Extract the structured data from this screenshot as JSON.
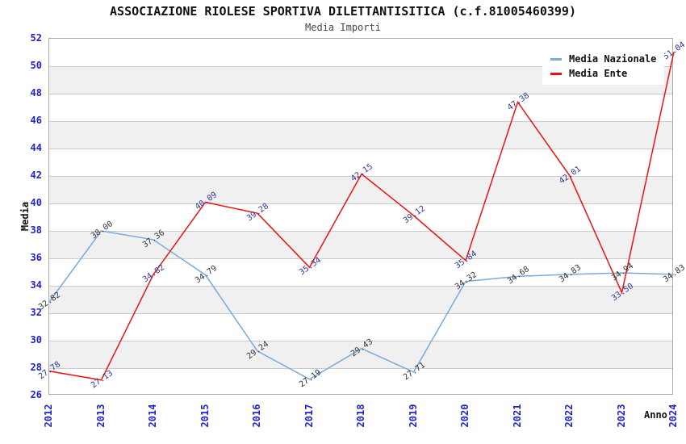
{
  "title": "ASSOCIAZIONE RIOLESE SPORTIVA DILETTANTISITICA (c.f.81005460399)",
  "subtitle": "Media Importi",
  "axes": {
    "x_label": "Anno",
    "y_label": "Media"
  },
  "chart_data": {
    "type": "line",
    "title": "ASSOCIAZIONE RIOLESE SPORTIVA DILETTANTISITICA (c.f.81005460399)",
    "subtitle": "Media Importi",
    "xlabel": "Anno",
    "ylabel": "Media",
    "categories": [
      "2012",
      "2013",
      "2014",
      "2015",
      "2016",
      "2017",
      "2018",
      "2019",
      "2020",
      "2021",
      "2022",
      "2023",
      "2024"
    ],
    "series": [
      {
        "name": "Media Nazionale",
        "color": "#77aadd",
        "label_color": "#333333",
        "values": [
          32.82,
          38.0,
          37.36,
          34.79,
          29.24,
          27.19,
          29.43,
          27.71,
          34.32,
          34.68,
          34.83,
          34.94,
          34.83
        ],
        "labels": [
          "32.82",
          "38.00",
          "37.36",
          "34.79",
          "29.24",
          "27.19",
          "29.43",
          "27.71",
          "34.32",
          "34.68",
          "34.83",
          "34.94",
          "34.83"
        ]
      },
      {
        "name": "Media Ente",
        "color": "#ee1111",
        "label_color": "#333399",
        "values": [
          27.78,
          27.13,
          34.82,
          40.09,
          39.28,
          35.34,
          42.15,
          39.12,
          35.84,
          47.38,
          42.01,
          33.5,
          51.04
        ],
        "labels": [
          "27.78",
          "27.13",
          "34.82",
          "40.09",
          "39.28",
          "35.34",
          "42.15",
          "39.12",
          "35.84",
          "47.38",
          "42.01",
          "33.50",
          "51.04"
        ]
      }
    ],
    "ylim": [
      26,
      52
    ],
    "ytick_step": 2,
    "yticks": [
      "26",
      "28",
      "30",
      "32",
      "34",
      "36",
      "38",
      "40",
      "42",
      "44",
      "46",
      "48",
      "50",
      "52"
    ],
    "grid": "horizontal gridlines with alternating white/grey bands",
    "legend_position": "top-right",
    "legend_entries": [
      "Media Nazionale",
      "Media Ente"
    ]
  },
  "style": {
    "tick_label_color": "#2222cc",
    "band_color": "#f0f0f0",
    "gridline_color": "#cccccc",
    "plot_border_color": "#aaaaaa",
    "series_nazionale_color": "#77aadd",
    "series_ente_color": "#ee1111",
    "nazionale_point_label_color": "#333333",
    "ente_point_label_color": "#333399"
  }
}
